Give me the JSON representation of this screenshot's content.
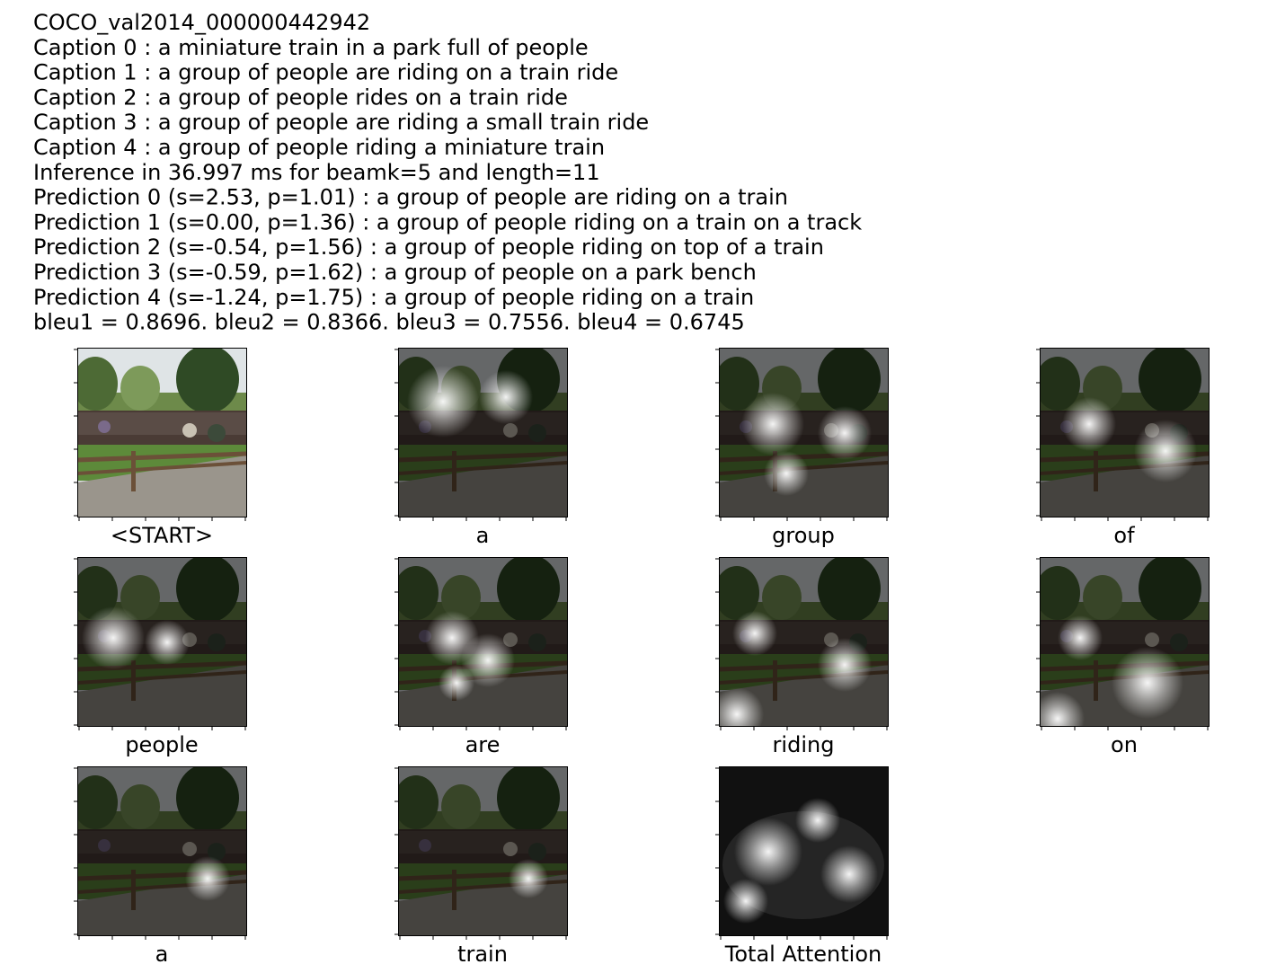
{
  "header": {
    "lines": [
      "COCO_val2014_000000442942",
      "Caption 0 : a miniature train in a park full of people",
      "Caption 1 : a group of people are riding on a train ride",
      "Caption 2 : a group of people rides on a train ride",
      "Caption 3 : a group of people are riding a small train ride",
      "Caption 4 : a group of people riding a miniature train",
      "Inference in 36.997 ms for beamk=5 and length=11",
      "Prediction 0 (s=2.53, p=1.01) : a group of people are riding on a train",
      "Prediction 1 (s=0.00, p=1.36) : a group of people riding on a train on a track",
      "Prediction 2 (s=-0.54, p=1.56) : a group of people riding on top of a train",
      "Prediction 3 (s=-0.59, p=1.62) : a group of people on a park bench",
      "Prediction 4 (s=-1.24, p=1.75) : a group of people riding on a train",
      "bleu1 = 0.8696. bleu2 = 0.8366. bleu3 = 0.7556. bleu4 = 0.6745"
    ]
  },
  "panels": [
    {
      "label": "<START>"
    },
    {
      "label": "a"
    },
    {
      "label": "group"
    },
    {
      "label": "of"
    },
    {
      "label": "people"
    },
    {
      "label": "are"
    },
    {
      "label": "riding"
    },
    {
      "label": "on"
    },
    {
      "label": "a"
    },
    {
      "label": "train"
    },
    {
      "label": "Total Attention"
    }
  ]
}
